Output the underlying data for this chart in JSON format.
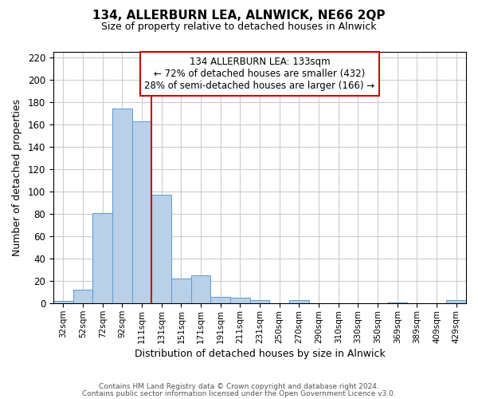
{
  "title": "134, ALLERBURN LEA, ALNWICK, NE66 2QP",
  "subtitle": "Size of property relative to detached houses in Alnwick",
  "xlabel": "Distribution of detached houses by size in Alnwick",
  "ylabel": "Number of detached properties",
  "bar_labels": [
    "32sqm",
    "52sqm",
    "72sqm",
    "92sqm",
    "111sqm",
    "131sqm",
    "151sqm",
    "171sqm",
    "191sqm",
    "211sqm",
    "231sqm",
    "250sqm",
    "270sqm",
    "290sqm",
    "310sqm",
    "330sqm",
    "350sqm",
    "369sqm",
    "389sqm",
    "409sqm",
    "429sqm"
  ],
  "bar_values": [
    2,
    12,
    81,
    174,
    163,
    97,
    22,
    25,
    6,
    5,
    3,
    0,
    3,
    0,
    0,
    0,
    0,
    1,
    0,
    0,
    3
  ],
  "bar_color": "#b8d0e8",
  "bar_edge_color": "#5b9bd5",
  "vline_color": "#cc0000",
  "vline_x_index": 5,
  "ylim": [
    0,
    225
  ],
  "yticks": [
    0,
    20,
    40,
    60,
    80,
    100,
    120,
    140,
    160,
    180,
    200,
    220
  ],
  "annotation_title": "134 ALLERBURN LEA: 133sqm",
  "annotation_line1": "← 72% of detached houses are smaller (432)",
  "annotation_line2": "28% of semi-detached houses are larger (166) →",
  "footer_line1": "Contains HM Land Registry data © Crown copyright and database right 2024.",
  "footer_line2": "Contains public sector information licensed under the Open Government Licence v3.0.",
  "background_color": "#ffffff",
  "grid_color": "#cccccc"
}
